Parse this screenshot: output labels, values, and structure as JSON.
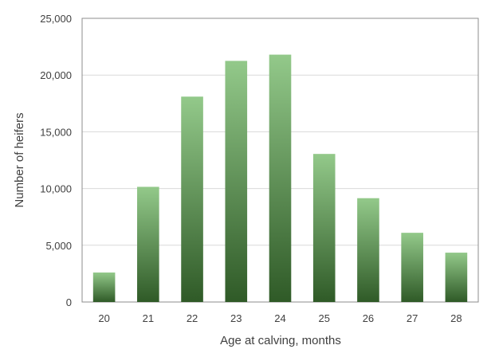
{
  "chart_data": {
    "type": "bar",
    "title": "",
    "xlabel": "Age at calving, months",
    "ylabel": "Number of heifers",
    "categories": [
      "20",
      "21",
      "22",
      "23",
      "24",
      "25",
      "26",
      "27",
      "28"
    ],
    "values": [
      2600,
      10150,
      18100,
      21250,
      21800,
      13050,
      9150,
      6100,
      4350
    ],
    "ylim": [
      0,
      25000
    ],
    "yticks": [
      0,
      5000,
      10000,
      15000,
      20000,
      25000
    ],
    "ytick_labels": [
      "0",
      "5,000",
      "10,000",
      "15,000",
      "20,000",
      "25,000"
    ],
    "grid": true,
    "legend": "none",
    "colors": {
      "bar_top": "#93c98a",
      "bar_bottom": "#2f5a27",
      "grid": "#d9d9d9",
      "axis": "#8c8c8c"
    }
  }
}
